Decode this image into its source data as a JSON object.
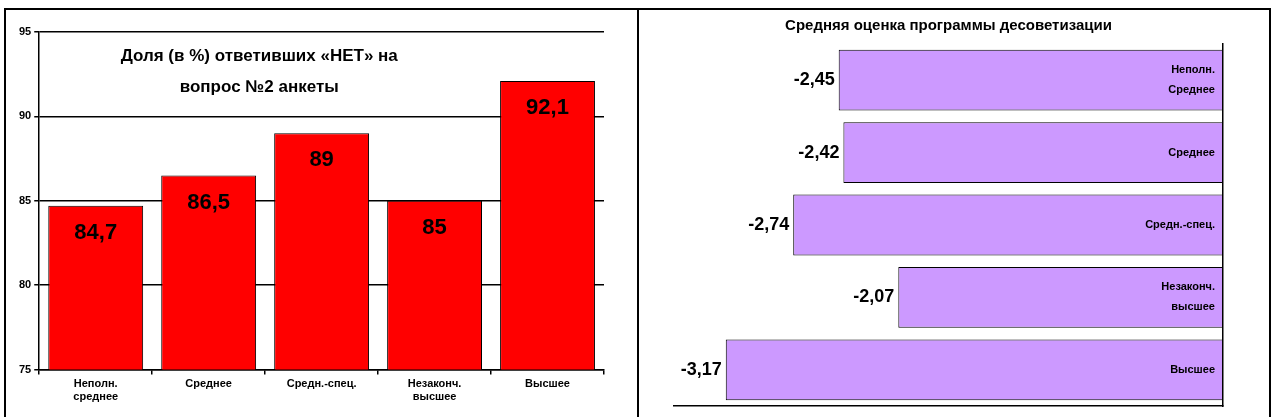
{
  "chart_data": [
    {
      "type": "bar",
      "title": "Доля (в %) ответивших «НЕТ» на вопрос №2 анкеты",
      "categories": [
        "Неполн. среднее",
        "Среднее",
        "Средн.-спец.",
        "Незаконч. высшее",
        "Высшее"
      ],
      "values": [
        84.7,
        86.5,
        89,
        85,
        92.1
      ],
      "value_labels": [
        "84,7",
        "86,5",
        "89",
        "85",
        "92,1"
      ],
      "color": "#ff0000",
      "ylim": [
        75,
        95
      ],
      "yticks": [
        75,
        80,
        85,
        90,
        95
      ],
      "grid": "y"
    },
    {
      "type": "bar",
      "orientation": "horizontal",
      "title": "Средняя оценка программы десоветизации",
      "categories": [
        "Неполн. Среднее",
        "Среднее",
        "Средн.-спец.",
        "Незаконч. высшее",
        "Высшее"
      ],
      "values": [
        -2.45,
        -2.42,
        -2.74,
        -2.07,
        -3.17
      ],
      "value_labels": [
        "-2,45",
        "-2,42",
        "-2,74",
        "-2,07",
        "-3,17"
      ],
      "color": "#cc99ff",
      "tick_labels": "y"
    }
  ]
}
